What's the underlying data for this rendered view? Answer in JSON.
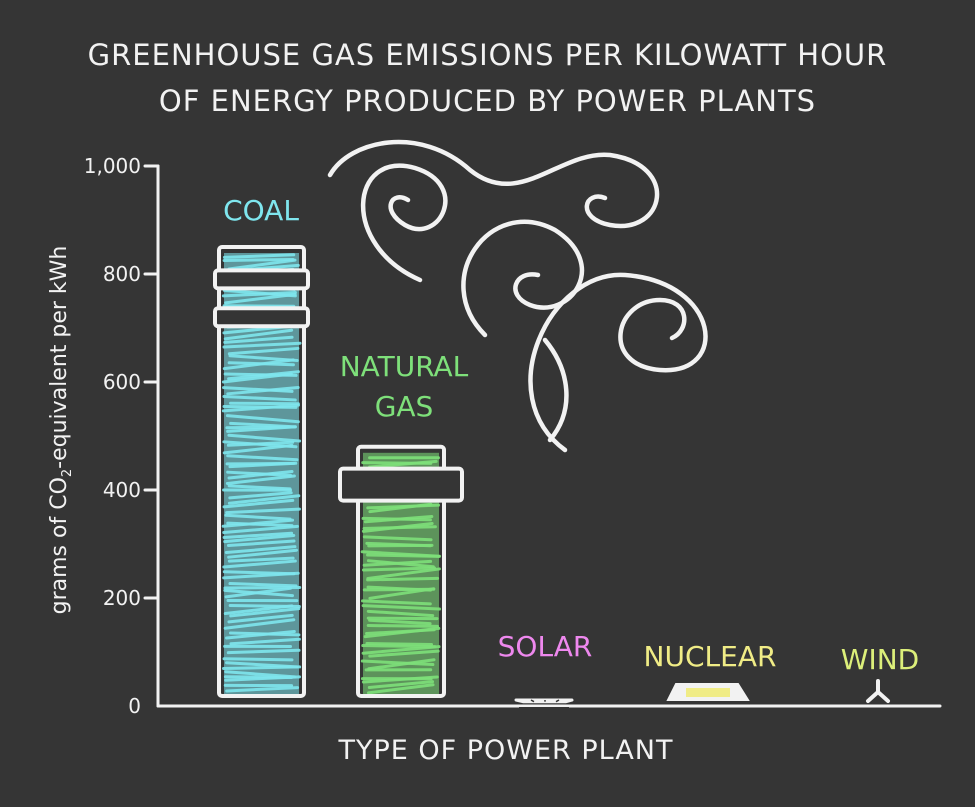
{
  "title": {
    "line1": "GREENHOUSE GAS EMISSIONS PER KILOWATT HOUR",
    "line2": "OF ENERGY PRODUCED BY POWER PLANTS"
  },
  "axes": {
    "xlabel": "TYPE OF POWER PLANT",
    "ylabel_pre": "grams of CO",
    "ylabel_sub": "2",
    "ylabel_post": "-equivalent per kWh"
  },
  "colors": {
    "background": "#353535",
    "axis": "#f2f2f2",
    "coal": "#7fe6ee",
    "natural_gas": "#7ee07a",
    "solar": "#ee88ee",
    "nuclear": "#f0ec86",
    "wind": "#dcef7a"
  },
  "chart_data": {
    "type": "bar",
    "title": "GREENHOUSE GAS EMISSIONS PER KILOWATT HOUR OF ENERGY PRODUCED BY POWER PLANTS",
    "xlabel": "TYPE OF POWER PLANT",
    "ylabel": "grams of CO2-equivalent per kWh",
    "ylim": [
      0,
      1000
    ],
    "yticks": [
      "0",
      "200",
      "400",
      "600",
      "800",
      "1,000"
    ],
    "ytick_values": [
      0,
      200,
      400,
      600,
      800,
      1000
    ],
    "grid": false,
    "categories": [
      "COAL",
      "NATURAL GAS",
      "SOLAR",
      "NUCLEAR",
      "WIND"
    ],
    "category_labels": [
      [
        "COAL"
      ],
      [
        "NATURAL",
        "GAS"
      ],
      [
        "SOLAR"
      ],
      [
        "NUCLEAR"
      ],
      [
        "WIND"
      ]
    ],
    "values": [
      850,
      480,
      45,
      20,
      12
    ],
    "range_markers": [
      [
        790,
        720
      ],
      [
        410
      ],
      [],
      [],
      []
    ]
  }
}
